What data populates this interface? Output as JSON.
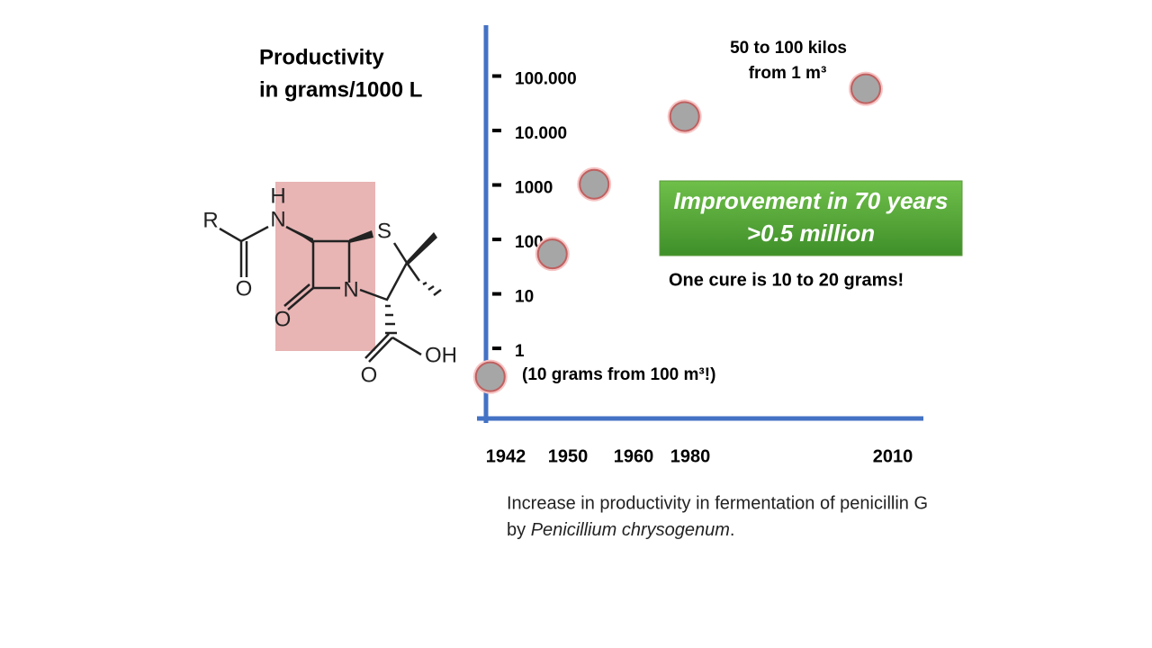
{
  "chart_data": {
    "type": "scatter",
    "ylabel": [
      "Productivity",
      "in grams/1000 L"
    ],
    "x": [
      1940,
      1948,
      1954,
      1978,
      2006
    ],
    "values": [
      0.35,
      63,
      1200,
      21000,
      68000
    ],
    "color": "#a6a6a6",
    "xticks": [
      1942,
      1950,
      1960,
      1980,
      2010
    ],
    "ylim": [
      0.06,
      1000000
    ],
    "yticks": [
      1,
      10,
      100,
      1000,
      {
        "value": 10000,
        "label": "10.000"
      },
      {
        "value": 100000,
        "label": "100.000"
      }
    ],
    "log_y": true,
    "annotations": [
      "50 to 100 kilos",
      "from 1 m³",
      "(10 grams from 100 m³!)",
      "One cure is 10 to 20 grams!"
    ],
    "callout": [
      "Improvement in 70 years",
      ">0.5 million"
    ],
    "caption": [
      "Increase in productivity in fermentation of penicillin G",
      "by ",
      "Penicillium chrysogenum",
      "."
    ]
  },
  "molecule": {
    "atoms": [
      "R",
      "H",
      "N",
      "S",
      "N",
      "O",
      "O",
      "O",
      "OH"
    ]
  }
}
